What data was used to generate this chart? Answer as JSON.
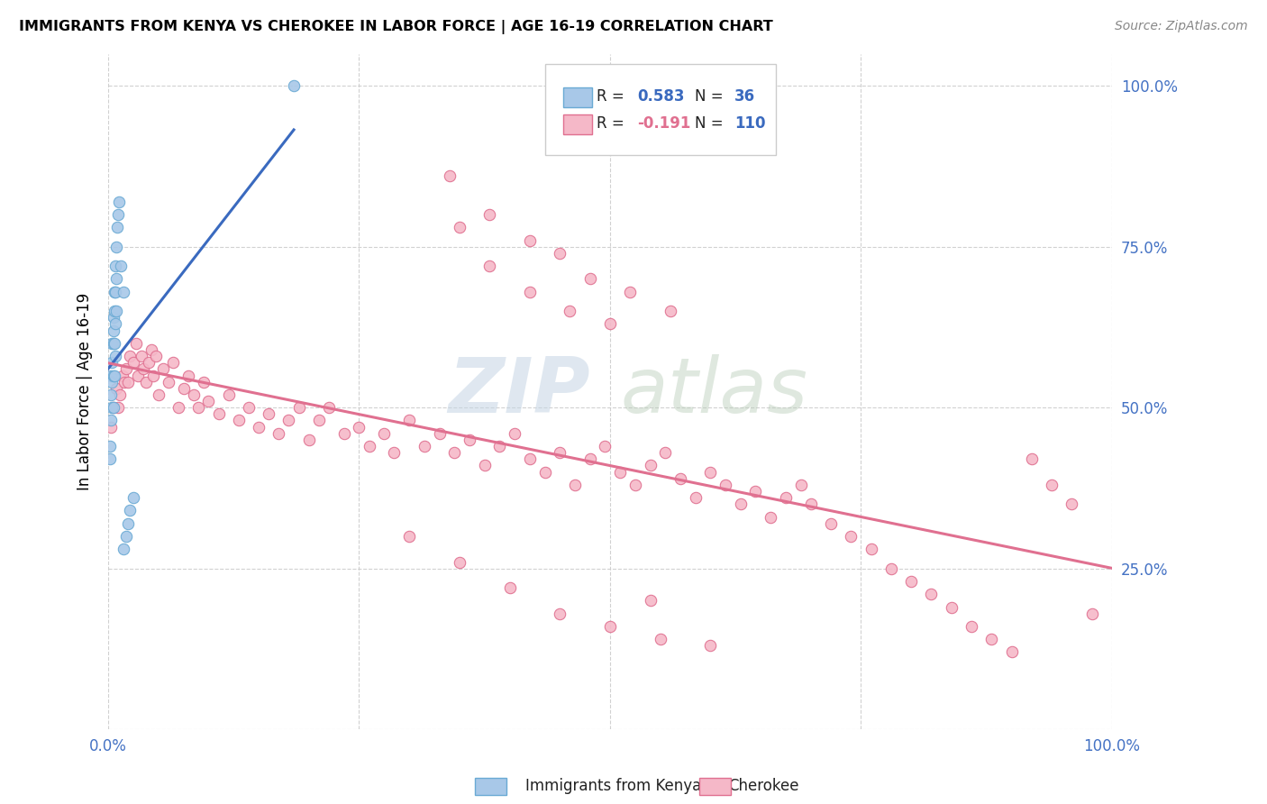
{
  "title": "IMMIGRANTS FROM KENYA VS CHEROKEE IN LABOR FORCE | AGE 16-19 CORRELATION CHART",
  "source": "Source: ZipAtlas.com",
  "ylabel": "In Labor Force | Age 16-19",
  "xlim": [
    0.0,
    1.0
  ],
  "ylim": [
    0.0,
    1.05
  ],
  "kenya_color": "#a8c8e8",
  "kenya_edge": "#6aaad4",
  "cherokee_color": "#f5b8c8",
  "cherokee_edge": "#e07090",
  "line_kenya_color": "#3a6abf",
  "line_cherokee_color": "#e07090",
  "watermark_zip_color": "#ccd8e8",
  "watermark_atlas_color": "#b8ccb8",
  "kenya_x": [
    0.002,
    0.002,
    0.003,
    0.003,
    0.003,
    0.004,
    0.004,
    0.004,
    0.004,
    0.005,
    0.005,
    0.005,
    0.005,
    0.005,
    0.006,
    0.006,
    0.006,
    0.006,
    0.007,
    0.007,
    0.007,
    0.007,
    0.008,
    0.008,
    0.008,
    0.009,
    0.01,
    0.011,
    0.013,
    0.015,
    0.015,
    0.018,
    0.02,
    0.022,
    0.025,
    0.185
  ],
  "kenya_y": [
    0.44,
    0.42,
    0.55,
    0.52,
    0.48,
    0.6,
    0.57,
    0.54,
    0.5,
    0.64,
    0.62,
    0.6,
    0.55,
    0.5,
    0.68,
    0.65,
    0.6,
    0.55,
    0.72,
    0.68,
    0.63,
    0.58,
    0.75,
    0.7,
    0.65,
    0.78,
    0.8,
    0.82,
    0.72,
    0.68,
    0.28,
    0.3,
    0.32,
    0.34,
    0.36,
    1.0
  ],
  "cherokee_x": [
    0.003,
    0.005,
    0.008,
    0.01,
    0.012,
    0.014,
    0.016,
    0.018,
    0.02,
    0.022,
    0.025,
    0.028,
    0.03,
    0.033,
    0.035,
    0.038,
    0.04,
    0.043,
    0.045,
    0.048,
    0.05,
    0.055,
    0.06,
    0.065,
    0.07,
    0.075,
    0.08,
    0.085,
    0.09,
    0.095,
    0.1,
    0.11,
    0.12,
    0.13,
    0.14,
    0.15,
    0.16,
    0.17,
    0.18,
    0.19,
    0.2,
    0.21,
    0.22,
    0.235,
    0.25,
    0.26,
    0.275,
    0.285,
    0.3,
    0.315,
    0.33,
    0.345,
    0.36,
    0.375,
    0.39,
    0.405,
    0.42,
    0.435,
    0.45,
    0.465,
    0.48,
    0.495,
    0.51,
    0.525,
    0.54,
    0.555,
    0.57,
    0.585,
    0.6,
    0.615,
    0.63,
    0.645,
    0.66,
    0.675,
    0.69,
    0.7,
    0.72,
    0.74,
    0.76,
    0.78,
    0.8,
    0.82,
    0.84,
    0.86,
    0.88,
    0.9,
    0.92,
    0.94,
    0.96,
    0.98,
    0.34,
    0.38,
    0.42,
    0.46,
    0.5,
    0.54,
    0.3,
    0.35,
    0.4,
    0.45,
    0.5,
    0.55,
    0.6,
    0.35,
    0.38,
    0.42,
    0.45,
    0.48,
    0.52,
    0.56
  ],
  "cherokee_y": [
    0.47,
    0.5,
    0.53,
    0.5,
    0.52,
    0.55,
    0.54,
    0.56,
    0.54,
    0.58,
    0.57,
    0.6,
    0.55,
    0.58,
    0.56,
    0.54,
    0.57,
    0.59,
    0.55,
    0.58,
    0.52,
    0.56,
    0.54,
    0.57,
    0.5,
    0.53,
    0.55,
    0.52,
    0.5,
    0.54,
    0.51,
    0.49,
    0.52,
    0.48,
    0.5,
    0.47,
    0.49,
    0.46,
    0.48,
    0.5,
    0.45,
    0.48,
    0.5,
    0.46,
    0.47,
    0.44,
    0.46,
    0.43,
    0.48,
    0.44,
    0.46,
    0.43,
    0.45,
    0.41,
    0.44,
    0.46,
    0.42,
    0.4,
    0.43,
    0.38,
    0.42,
    0.44,
    0.4,
    0.38,
    0.41,
    0.43,
    0.39,
    0.36,
    0.4,
    0.38,
    0.35,
    0.37,
    0.33,
    0.36,
    0.38,
    0.35,
    0.32,
    0.3,
    0.28,
    0.25,
    0.23,
    0.21,
    0.19,
    0.16,
    0.14,
    0.12,
    0.42,
    0.38,
    0.35,
    0.18,
    0.86,
    0.72,
    0.68,
    0.65,
    0.63,
    0.2,
    0.3,
    0.26,
    0.22,
    0.18,
    0.16,
    0.14,
    0.13,
    0.78,
    0.8,
    0.76,
    0.74,
    0.7,
    0.68,
    0.65
  ]
}
